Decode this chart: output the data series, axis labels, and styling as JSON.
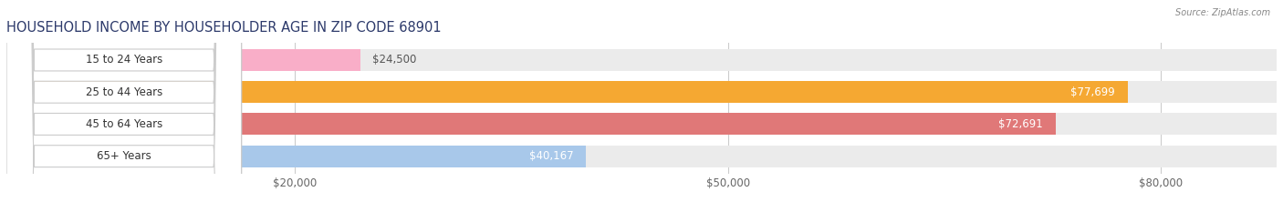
{
  "title": "HOUSEHOLD INCOME BY HOUSEHOLDER AGE IN ZIP CODE 68901",
  "source": "Source: ZipAtlas.com",
  "categories": [
    "15 to 24 Years",
    "25 to 44 Years",
    "45 to 64 Years",
    "65+ Years"
  ],
  "values": [
    24500,
    77699,
    72691,
    40167
  ],
  "bar_colors": [
    "#f9aec8",
    "#f5a832",
    "#e07878",
    "#a8c8ea"
  ],
  "value_labels": [
    "$24,500",
    "$77,699",
    "$72,691",
    "$40,167"
  ],
  "xmin": 0,
  "xmax": 88000,
  "xticks": [
    20000,
    50000,
    80000
  ],
  "xtick_labels": [
    "$20,000",
    "$50,000",
    "$80,000"
  ],
  "title_fontsize": 10.5,
  "label_fontsize": 8.5,
  "value_fontsize": 8.5,
  "background_color": "#ffffff",
  "bar_bg_color": "#ebebeb",
  "title_color": "#2d3a6b",
  "source_color": "#888888",
  "label_color": "#333333",
  "value_color_inside": "#ffffff",
  "value_color_outside": "#555555"
}
